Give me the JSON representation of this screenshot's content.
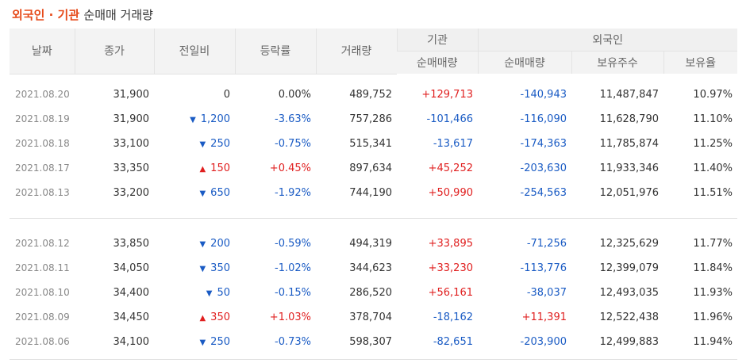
{
  "title": {
    "accent": "외국인 · 기관",
    "rest": "순매매 거래량"
  },
  "headers": {
    "date": "날짜",
    "close": "종가",
    "change": "전일비",
    "rate": "등락률",
    "volume": "거래량",
    "inst_group": "기관",
    "frn_group": "외국인",
    "inst_net": "순매매량",
    "frn_net": "순매매량",
    "frn_hold": "보유주수",
    "frn_ratio": "보유율"
  },
  "colors": {
    "up": "#e01f1f",
    "down": "#1a5bc4",
    "accent": "#e64a19"
  },
  "rows": [
    {
      "date": "2021.08.20",
      "close": "31,900",
      "dir": "none",
      "change": "0",
      "rate": "0.00%",
      "volume": "489,752",
      "inst": "+129,713",
      "frn": "-140,943",
      "hold": "11,487,847",
      "ratio": "10.97%"
    },
    {
      "date": "2021.08.19",
      "close": "31,900",
      "dir": "down",
      "change": "1,200",
      "rate": "-3.63%",
      "volume": "757,286",
      "inst": "-101,466",
      "frn": "-116,090",
      "hold": "11,628,790",
      "ratio": "11.10%"
    },
    {
      "date": "2021.08.18",
      "close": "33,100",
      "dir": "down",
      "change": "250",
      "rate": "-0.75%",
      "volume": "515,341",
      "inst": "-13,617",
      "frn": "-174,363",
      "hold": "11,785,874",
      "ratio": "11.25%"
    },
    {
      "date": "2021.08.17",
      "close": "33,350",
      "dir": "up",
      "change": "150",
      "rate": "+0.45%",
      "volume": "897,634",
      "inst": "+45,252",
      "frn": "-203,630",
      "hold": "11,933,346",
      "ratio": "11.40%"
    },
    {
      "date": "2021.08.13",
      "close": "33,200",
      "dir": "down",
      "change": "650",
      "rate": "-1.92%",
      "volume": "744,190",
      "inst": "+50,990",
      "frn": "-254,563",
      "hold": "12,051,976",
      "ratio": "11.51%"
    },
    {
      "date": "2021.08.12",
      "close": "33,850",
      "dir": "down",
      "change": "200",
      "rate": "-0.59%",
      "volume": "494,319",
      "inst": "+33,895",
      "frn": "-71,256",
      "hold": "12,325,629",
      "ratio": "11.77%"
    },
    {
      "date": "2021.08.11",
      "close": "34,050",
      "dir": "down",
      "change": "350",
      "rate": "-1.02%",
      "volume": "344,623",
      "inst": "+33,230",
      "frn": "-113,776",
      "hold": "12,399,079",
      "ratio": "11.84%"
    },
    {
      "date": "2021.08.10",
      "close": "34,400",
      "dir": "down",
      "change": "50",
      "rate": "-0.15%",
      "volume": "286,520",
      "inst": "+56,161",
      "frn": "-38,037",
      "hold": "12,493,035",
      "ratio": "11.93%"
    },
    {
      "date": "2021.08.09",
      "close": "34,450",
      "dir": "up",
      "change": "350",
      "rate": "+1.03%",
      "volume": "378,704",
      "inst": "-18,162",
      "frn": "+11,391",
      "hold": "12,522,438",
      "ratio": "11.96%"
    },
    {
      "date": "2021.08.06",
      "close": "34,100",
      "dir": "down",
      "change": "250",
      "rate": "-0.73%",
      "volume": "598,307",
      "inst": "-82,651",
      "frn": "-203,900",
      "hold": "12,499,883",
      "ratio": "11.94%"
    }
  ]
}
